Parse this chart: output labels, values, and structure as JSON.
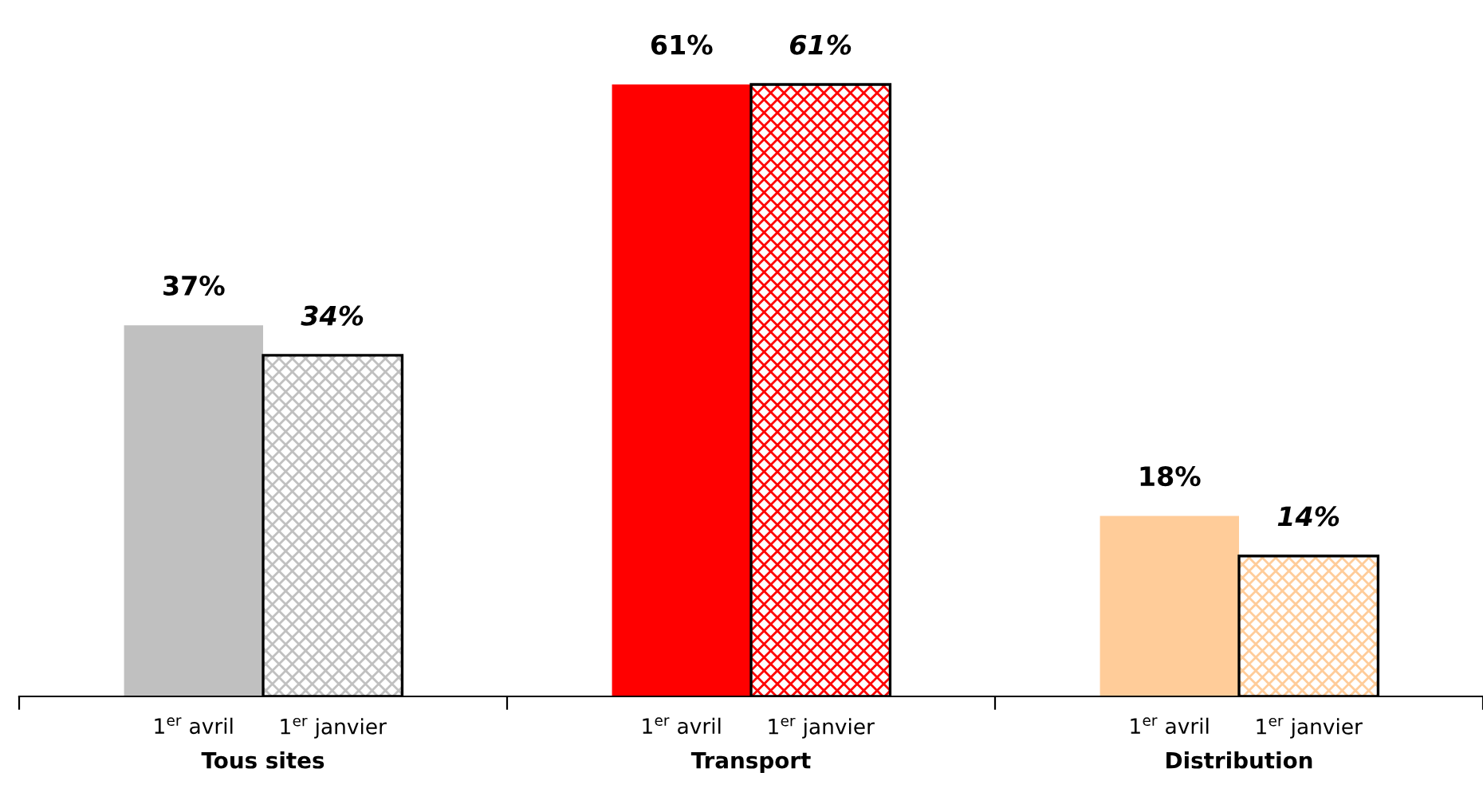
{
  "chart_data": {
    "type": "bar",
    "grid": false,
    "categories": [
      "Tous sites",
      "Transport",
      "Distribution"
    ],
    "series": [
      {
        "name": "1$^{er}$ avril",
        "colors": [
          "#c0c0c0",
          "#ff0000",
          "#ffcc99"
        ],
        "values": [
          37,
          61,
          18
        ],
        "value_labels": [
          "37%",
          "61%",
          "18%"
        ]
      },
      {
        "name": "1$^{er}$ janvier",
        "colors": [
          "#c0c0c0",
          "#ff0000",
          "#ffcc99"
        ],
        "values": [
          34,
          61,
          14
        ],
        "value_labels": [
          "34%",
          "61%",
          "14%"
        ]
      }
    ]
  }
}
